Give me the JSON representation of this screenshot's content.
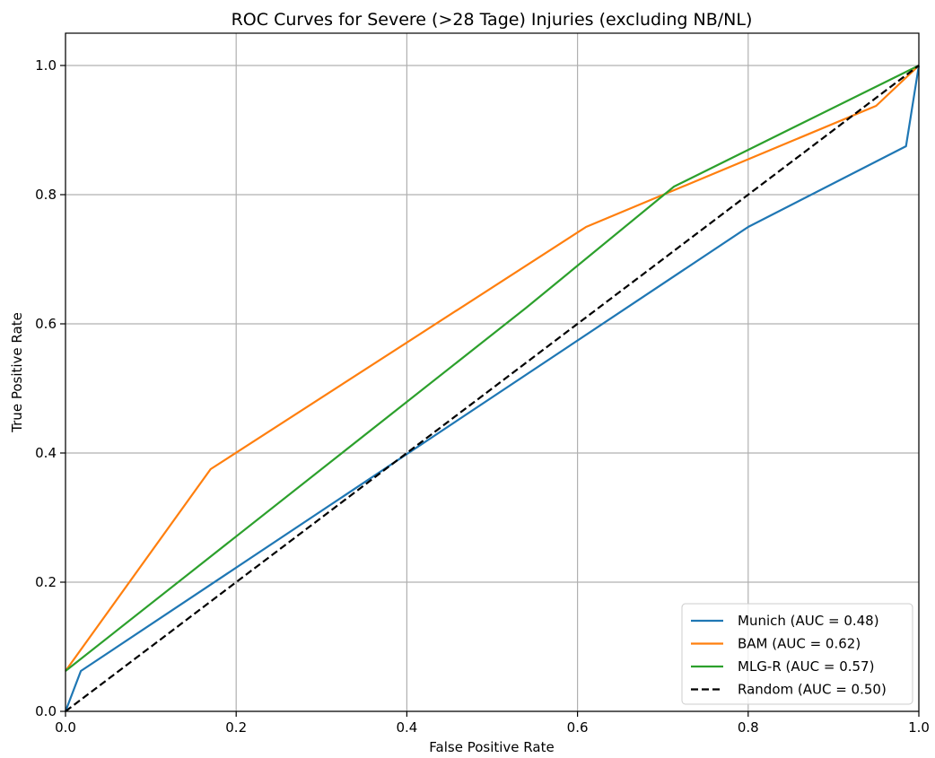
{
  "chart_data": {
    "type": "line",
    "title": "ROC Curves for Severe (>28 Tage) Injuries (excluding NB/NL)",
    "xlabel": "False Positive Rate",
    "ylabel": "True Positive Rate",
    "xlim": [
      0.0,
      1.0
    ],
    "ylim": [
      0.0,
      1.0
    ],
    "xticks": [
      "0.0",
      "0.2",
      "0.4",
      "0.6",
      "0.8",
      "1.0"
    ],
    "yticks": [
      "0.0",
      "0.2",
      "0.4",
      "0.6",
      "0.8",
      "1.0"
    ],
    "grid": true,
    "legend_position": "bottom-right",
    "series": [
      {
        "name": "Munich (AUC = 0.48)",
        "color": "#1f77b4",
        "dash": "solid",
        "x": [
          0.0,
          0.018,
          0.8,
          0.985,
          1.0
        ],
        "y": [
          0.0,
          0.0625,
          0.75,
          0.875,
          1.0
        ]
      },
      {
        "name": "BAM (AUC = 0.62)",
        "color": "#ff7f0e",
        "dash": "solid",
        "x": [
          0.0,
          0.17,
          0.61,
          0.95,
          1.0
        ],
        "y": [
          0.0625,
          0.375,
          0.75,
          0.9375,
          1.0
        ]
      },
      {
        "name": "MLG-R (AUC = 0.57)",
        "color": "#2ca02c",
        "dash": "solid",
        "x": [
          0.0,
          0.54,
          0.713,
          1.0
        ],
        "y": [
          0.0625,
          0.625,
          0.8125,
          1.0
        ]
      },
      {
        "name": "Random (AUC = 0.50)",
        "color": "#000000",
        "dash": "dashed",
        "x": [
          0.0,
          1.0
        ],
        "y": [
          0.0,
          1.0
        ]
      }
    ]
  }
}
